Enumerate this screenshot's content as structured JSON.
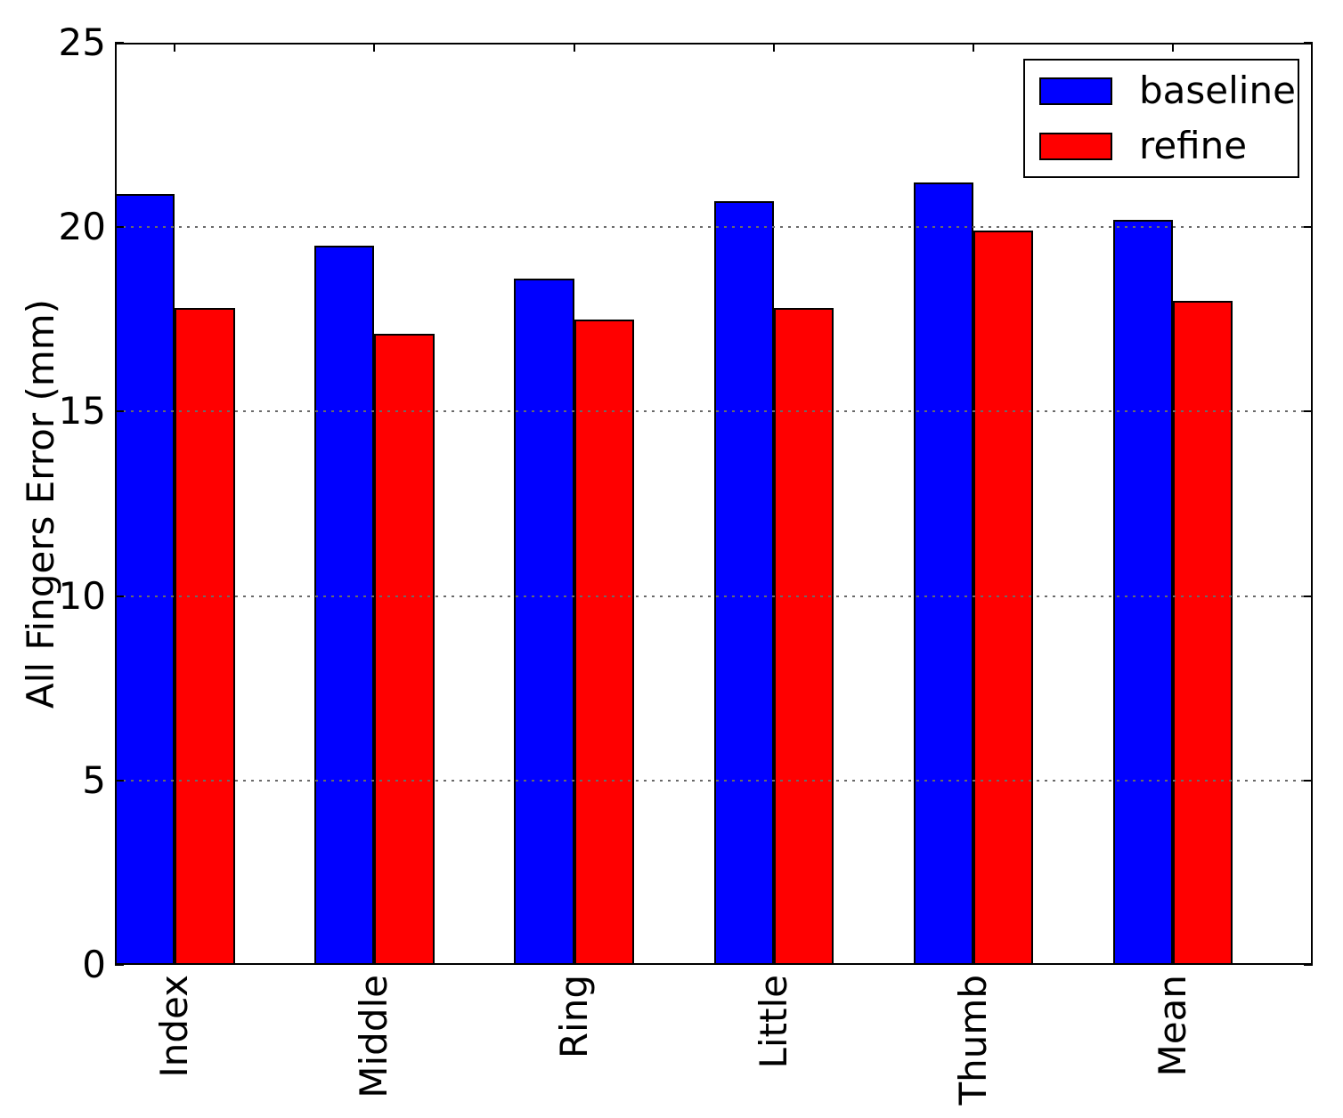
{
  "chart_data": {
    "type": "bar",
    "title": "",
    "categories": [
      "Index",
      "Middle",
      "Ring",
      "Little",
      "Thumb",
      "Mean"
    ],
    "series": [
      {
        "name": "baseline",
        "color": "#0000ff",
        "values": [
          20.9,
          19.5,
          18.6,
          20.7,
          21.2,
          20.2
        ]
      },
      {
        "name": "refine",
        "color": "#ff0000",
        "values": [
          17.8,
          17.1,
          17.5,
          17.8,
          19.9,
          18.0
        ]
      }
    ],
    "xlabel": "",
    "ylabel": "All Fingers Error (mm)",
    "ylim": [
      0,
      25
    ],
    "yticks": [
      0,
      5,
      10,
      15,
      20,
      25
    ],
    "bar_edge_color": "#000000",
    "grid": "horizontal dotted gridlines at yticks, drawn over bars",
    "gridline_color": "#6a6a6a",
    "legend_position": "upper right",
    "tick_style": "inward ticks on all four spines",
    "bar_group_width_fraction": 0.6
  }
}
